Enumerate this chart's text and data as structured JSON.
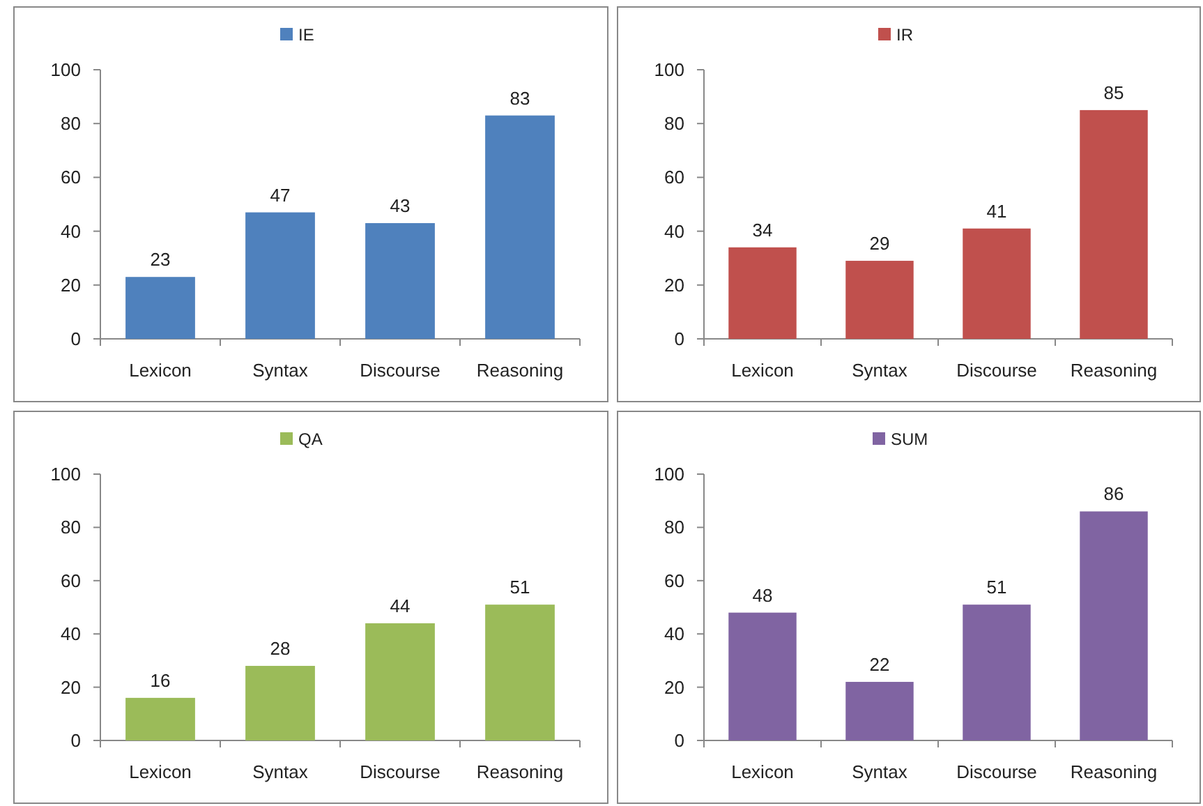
{
  "chart_data": [
    {
      "type": "bar",
      "categories": [
        "Lexicon",
        "Syntax",
        "Discourse",
        "Reasoning"
      ],
      "series": [
        {
          "name": "IE",
          "color": "#4f81bd",
          "values": [
            23,
            47,
            43,
            83
          ]
        }
      ],
      "ylim": [
        0,
        100
      ],
      "yticks": [
        0,
        20,
        40,
        60,
        80,
        100
      ],
      "data_labels": true,
      "legend": "top",
      "grid": false
    },
    {
      "type": "bar",
      "categories": [
        "Lexicon",
        "Syntax",
        "Discourse",
        "Reasoning"
      ],
      "series": [
        {
          "name": "IR",
          "color": "#c0504d",
          "values": [
            34,
            29,
            41,
            85
          ]
        }
      ],
      "ylim": [
        0,
        100
      ],
      "yticks": [
        0,
        20,
        40,
        60,
        80,
        100
      ],
      "data_labels": true,
      "legend": "top",
      "grid": false
    },
    {
      "type": "bar",
      "categories": [
        "Lexicon",
        "Syntax",
        "Discourse",
        "Reasoning"
      ],
      "series": [
        {
          "name": "QA",
          "color": "#9bbb59",
          "values": [
            16,
            28,
            44,
            51
          ]
        }
      ],
      "ylim": [
        0,
        100
      ],
      "yticks": [
        0,
        20,
        40,
        60,
        80,
        100
      ],
      "data_labels": true,
      "legend": "top",
      "grid": false
    },
    {
      "type": "bar",
      "categories": [
        "Lexicon",
        "Syntax",
        "Discourse",
        "Reasoning"
      ],
      "series": [
        {
          "name": "SUM",
          "color": "#8064a2",
          "values": [
            48,
            22,
            51,
            86
          ]
        }
      ],
      "ylim": [
        0,
        100
      ],
      "yticks": [
        0,
        20,
        40,
        60,
        80,
        100
      ],
      "data_labels": true,
      "legend": "top",
      "grid": false
    }
  ]
}
